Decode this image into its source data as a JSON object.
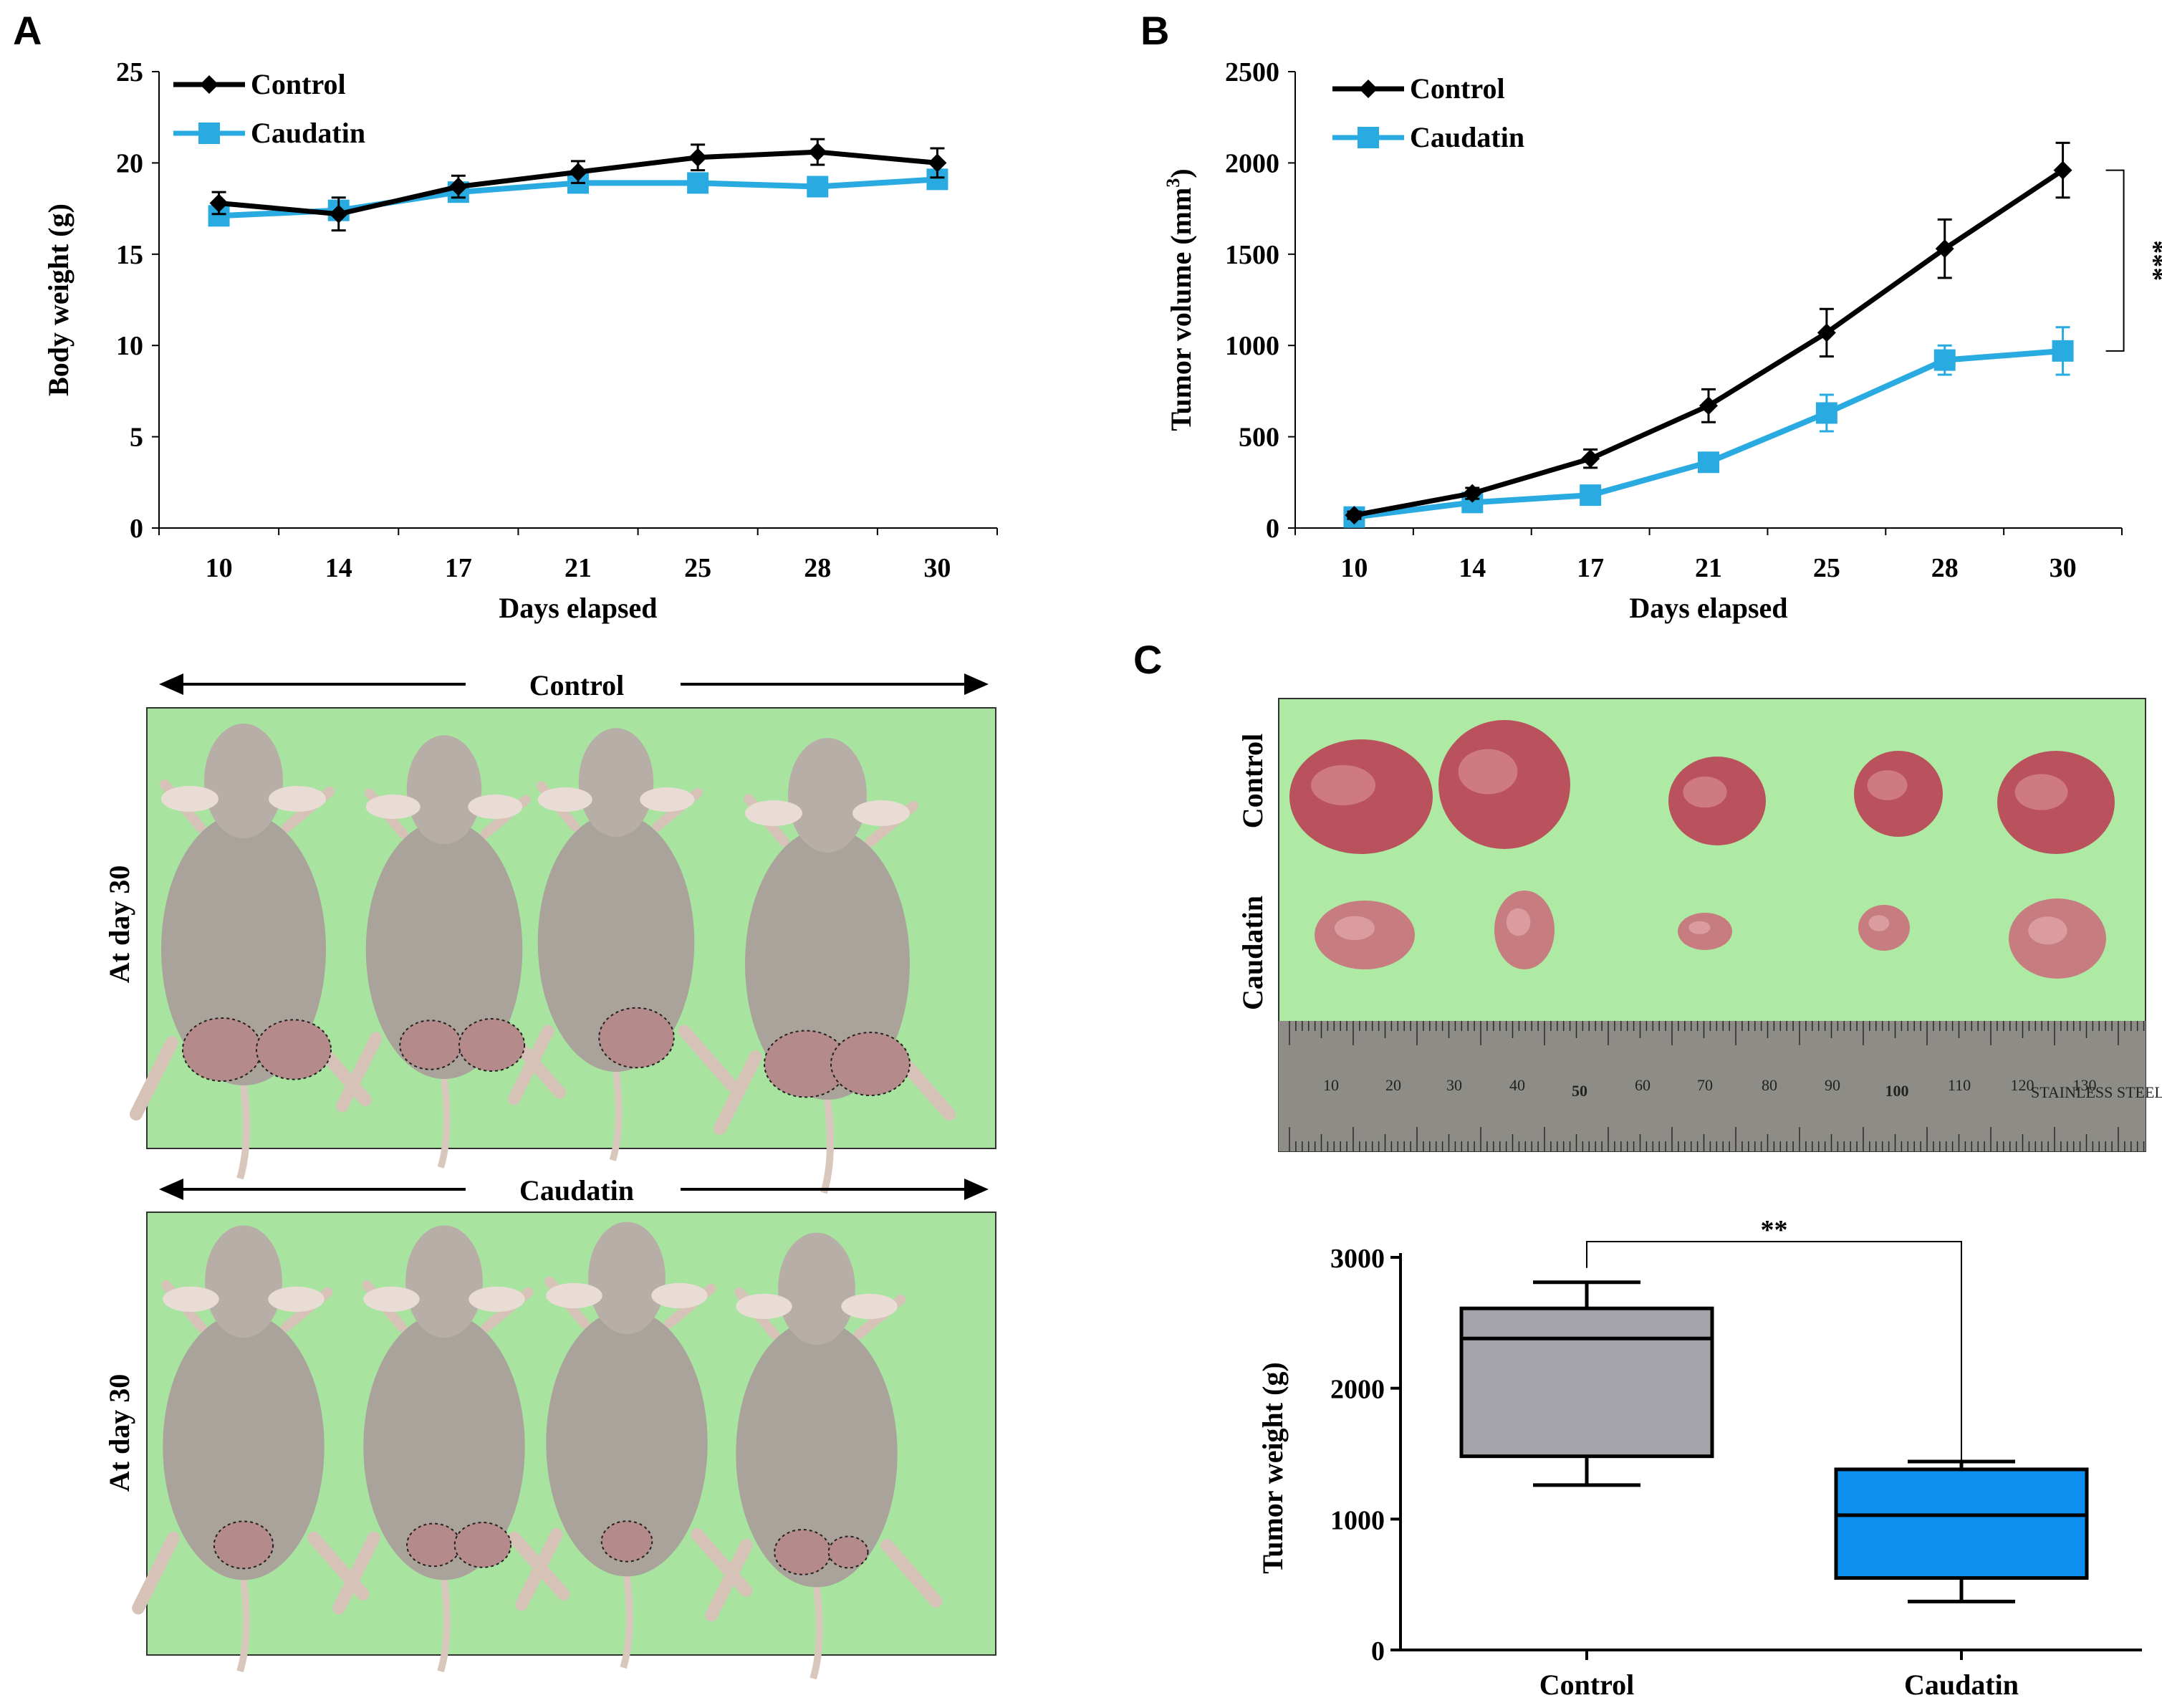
{
  "panels": {
    "a": "A",
    "b": "B",
    "c": "C"
  },
  "colors": {
    "control": "#000000",
    "caudatin": "#29abe2",
    "box_control": "#a4a3a9",
    "box_caudatin": "#0d8ff0",
    "photo_bg": "#a8e3a0"
  },
  "chart_data": [
    {
      "id": "body_weight",
      "type": "line",
      "title": "",
      "xlabel": "Days elapsed",
      "ylabel": "Body weight (g)",
      "categories": [
        "10",
        "14",
        "17",
        "21",
        "25",
        "28",
        "30"
      ],
      "ylim": [
        0,
        25
      ],
      "yticks": [
        "0",
        "5",
        "10",
        "15",
        "20",
        "25"
      ],
      "series": [
        {
          "name": "Control",
          "values": [
            17.8,
            17.2,
            18.7,
            19.5,
            20.3,
            20.6,
            20.0
          ],
          "err": [
            0.6,
            0.9,
            0.6,
            0.6,
            0.7,
            0.7,
            0.8
          ]
        },
        {
          "name": "Caudatin",
          "values": [
            17.1,
            17.4,
            18.4,
            18.9,
            18.9,
            18.7,
            19.1
          ],
          "err": [
            0.3,
            0.3,
            0.3,
            0.3,
            0.3,
            0.3,
            0.3
          ]
        }
      ]
    },
    {
      "id": "tumor_volume",
      "type": "line",
      "title": "",
      "xlabel": "Days elapsed",
      "ylabel": "Tumor volume (mm³)",
      "categories": [
        "10",
        "14",
        "17",
        "21",
        "25",
        "28",
        "30"
      ],
      "ylim": [
        0,
        2500
      ],
      "yticks": [
        "0",
        "500",
        "1000",
        "1500",
        "2000",
        "2500"
      ],
      "annotation": "***",
      "series": [
        {
          "name": "Control",
          "values": [
            70,
            190,
            380,
            670,
            1070,
            1530,
            1960
          ],
          "err": [
            20,
            30,
            50,
            90,
            130,
            160,
            150
          ]
        },
        {
          "name": "Caudatin",
          "values": [
            60,
            140,
            180,
            360,
            630,
            920,
            970
          ],
          "err": [
            20,
            25,
            35,
            45,
            100,
            80,
            130
          ]
        }
      ]
    },
    {
      "id": "tumor_weight",
      "type": "box",
      "title": "",
      "xlabel": "",
      "ylabel": "Tumor weight (g)",
      "categories": [
        "Control",
        "Caudatin"
      ],
      "ylim": [
        0,
        3000
      ],
      "yticks": [
        "0",
        "1000",
        "2000",
        "3000"
      ],
      "annotation": "**",
      "boxes": [
        {
          "name": "Control",
          "min": 1260,
          "q1": 1480,
          "median": 2380,
          "q3": 2610,
          "max": 2810
        },
        {
          "name": "Caudatin",
          "min": 370,
          "q1": 550,
          "median": 1030,
          "q3": 1380,
          "max": 1440
        }
      ]
    }
  ],
  "photos": {
    "control_caption": "Control",
    "caudatin_caption": "Caudatin",
    "day_label": "At day 30",
    "tumor_row_control": "Control",
    "tumor_row_caudatin": "Caudatin",
    "ruler_numbers": [
      "10",
      "20",
      "30",
      "40",
      "50",
      "60",
      "70",
      "80",
      "90",
      "100",
      "110",
      "120",
      "130"
    ],
    "ruler_text": "STAINLESS STEEL"
  }
}
